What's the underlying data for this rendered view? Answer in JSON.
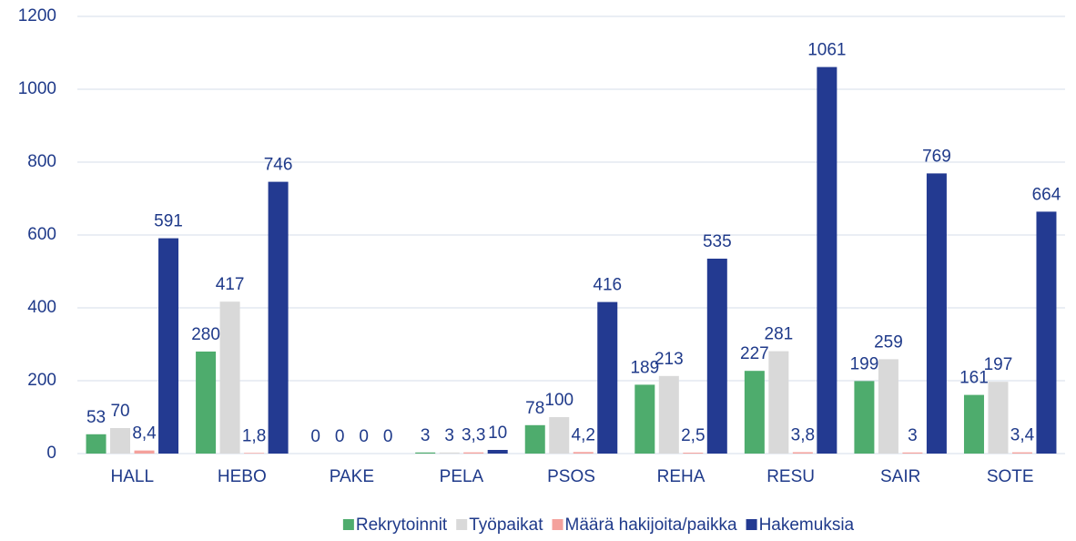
{
  "chart_data": {
    "type": "bar",
    "categories": [
      "HALL",
      "HEBO",
      "PAKE",
      "PELA",
      "PSOS",
      "REHA",
      "RESU",
      "SAIR",
      "SOTE"
    ],
    "series": [
      {
        "name": "Rekrytoinnit",
        "color": "#4eac6d",
        "values": [
          53,
          280,
          0,
          3,
          78,
          189,
          227,
          199,
          161
        ]
      },
      {
        "name": "Työpaikat",
        "color": "#d9d9d9",
        "values": [
          70,
          417,
          0,
          3,
          100,
          213,
          281,
          259,
          197
        ]
      },
      {
        "name": "Määrä hakijoita/paikka",
        "color": "#f4a19c",
        "values": [
          8.4,
          1.8,
          0,
          3.3,
          4.2,
          2.5,
          3.8,
          3,
          3.4
        ],
        "value_labels": [
          "8,4",
          "1,8",
          "0",
          "3,3",
          "4,2",
          "2,5",
          "3,8",
          "3",
          "3,4"
        ]
      },
      {
        "name": "Hakemuksia",
        "color": "#233a91",
        "values": [
          591,
          746,
          0,
          10,
          416,
          535,
          1061,
          769,
          664
        ]
      }
    ],
    "ylim": [
      0,
      1200
    ],
    "yticks": [
      0,
      200,
      400,
      600,
      800,
      1000,
      1200
    ],
    "grid": true,
    "legend": "bottom"
  }
}
